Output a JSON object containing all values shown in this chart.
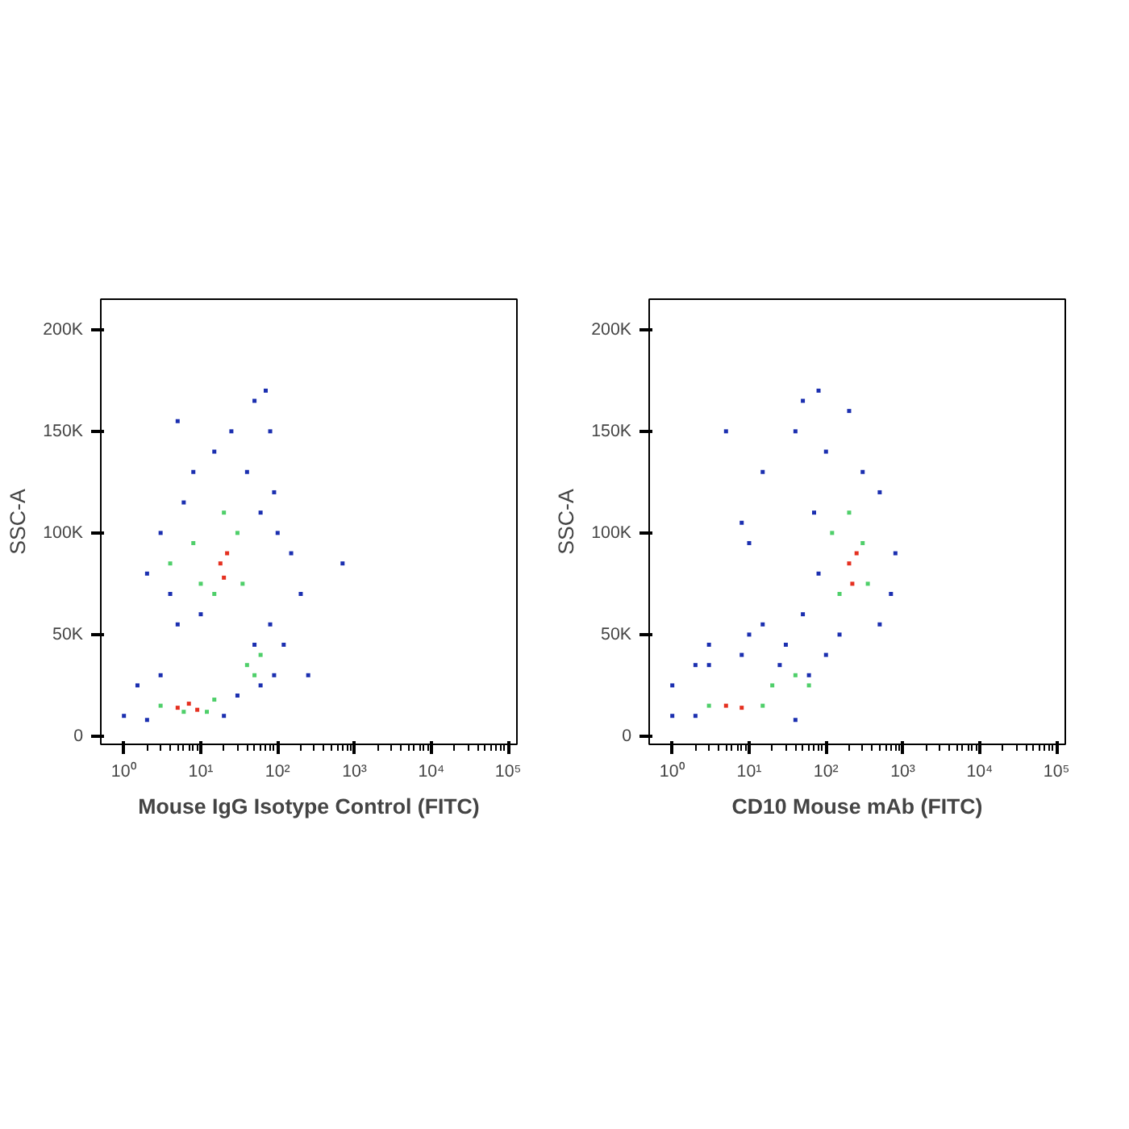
{
  "chart_data": [
    {
      "type": "scatter",
      "xlabel": "Mouse IgG Isotype Control (FITC)",
      "ylabel": "SSC-A",
      "log": "x",
      "grid": false,
      "marker": "square",
      "xlim": [
        0.5,
        130000
      ],
      "ylim": [
        -4000,
        215000
      ],
      "xticks": [
        {
          "value": 1,
          "label": "10⁰"
        },
        {
          "value": 10,
          "label": "10¹"
        },
        {
          "value": 100,
          "label": "10²"
        },
        {
          "value": 1000,
          "label": "10³"
        },
        {
          "value": 10000,
          "label": "10⁴"
        },
        {
          "value": 100000,
          "label": "10⁵"
        }
      ],
      "yticks": [
        {
          "value": 0,
          "label": "0"
        },
        {
          "value": 50000,
          "label": "50K"
        },
        {
          "value": 100000,
          "label": "100K"
        },
        {
          "value": 150000,
          "label": "150K"
        },
        {
          "value": 200000,
          "label": "200K"
        }
      ],
      "series": [
        {
          "color": "#1b2fb0",
          "x": [
            1,
            1.5,
            2,
            3,
            20,
            30,
            60,
            90,
            50,
            80,
            2,
            3,
            4,
            6,
            8,
            15,
            25,
            50,
            70,
            80,
            90,
            100,
            60,
            40,
            10,
            5,
            150,
            200,
            700,
            250,
            5,
            120
          ],
          "values": [
            10000,
            25000,
            8000,
            30000,
            10000,
            20000,
            25000,
            30000,
            45000,
            55000,
            80000,
            100000,
            70000,
            115000,
            130000,
            140000,
            150000,
            165000,
            170000,
            150000,
            120000,
            100000,
            110000,
            130000,
            60000,
            55000,
            90000,
            70000,
            85000,
            30000,
            155000,
            45000
          ]
        },
        {
          "color": "#4fcf6a",
          "x": [
            3,
            12,
            15,
            4,
            8,
            10,
            15,
            30,
            35,
            40,
            60,
            50,
            20,
            6
          ],
          "values": [
            15000,
            12000,
            18000,
            85000,
            95000,
            75000,
            70000,
            100000,
            75000,
            35000,
            40000,
            30000,
            110000,
            12000
          ]
        },
        {
          "color": "#e53020",
          "x": [
            5,
            7,
            9,
            18,
            22,
            20
          ],
          "values": [
            14000,
            16000,
            13000,
            85000,
            90000,
            78000
          ]
        }
      ]
    },
    {
      "type": "scatter",
      "xlabel": "CD10 Mouse mAb (FITC)",
      "ylabel": "SSC-A",
      "log": "x",
      "grid": false,
      "marker": "square",
      "xlim": [
        0.5,
        130000
      ],
      "ylim": [
        -4000,
        215000
      ],
      "xticks": [
        {
          "value": 1,
          "label": "10⁰"
        },
        {
          "value": 10,
          "label": "10¹"
        },
        {
          "value": 100,
          "label": "10²"
        },
        {
          "value": 1000,
          "label": "10³"
        },
        {
          "value": 10000,
          "label": "10⁴"
        },
        {
          "value": 100000,
          "label": "10⁵"
        }
      ],
      "yticks": [
        {
          "value": 0,
          "label": "0"
        },
        {
          "value": 50000,
          "label": "50K"
        },
        {
          "value": 100000,
          "label": "100K"
        },
        {
          "value": 150000,
          "label": "150K"
        },
        {
          "value": 200000,
          "label": "200K"
        }
      ],
      "series": [
        {
          "color": "#1b2fb0",
          "x": [
            1,
            1,
            2,
            3,
            8,
            10,
            15,
            30,
            25,
            50,
            60,
            40,
            50,
            80,
            100,
            200,
            300,
            500,
            800,
            700,
            500,
            150,
            70,
            80,
            5,
            3,
            10,
            8,
            100,
            15,
            2,
            40
          ],
          "values": [
            10000,
            25000,
            35000,
            45000,
            40000,
            50000,
            55000,
            45000,
            35000,
            60000,
            30000,
            150000,
            165000,
            170000,
            140000,
            160000,
            130000,
            120000,
            90000,
            70000,
            55000,
            50000,
            110000,
            80000,
            150000,
            35000,
            95000,
            105000,
            40000,
            130000,
            10000,
            8000
          ]
        },
        {
          "color": "#4fcf6a",
          "x": [
            3,
            15,
            20,
            40,
            150,
            300,
            120,
            200,
            350,
            60
          ],
          "values": [
            15000,
            15000,
            25000,
            30000,
            70000,
            95000,
            100000,
            110000,
            75000,
            25000
          ]
        },
        {
          "color": "#e53020",
          "x": [
            5,
            8,
            200,
            250,
            220
          ],
          "values": [
            15000,
            14000,
            85000,
            90000,
            75000
          ]
        }
      ]
    }
  ]
}
